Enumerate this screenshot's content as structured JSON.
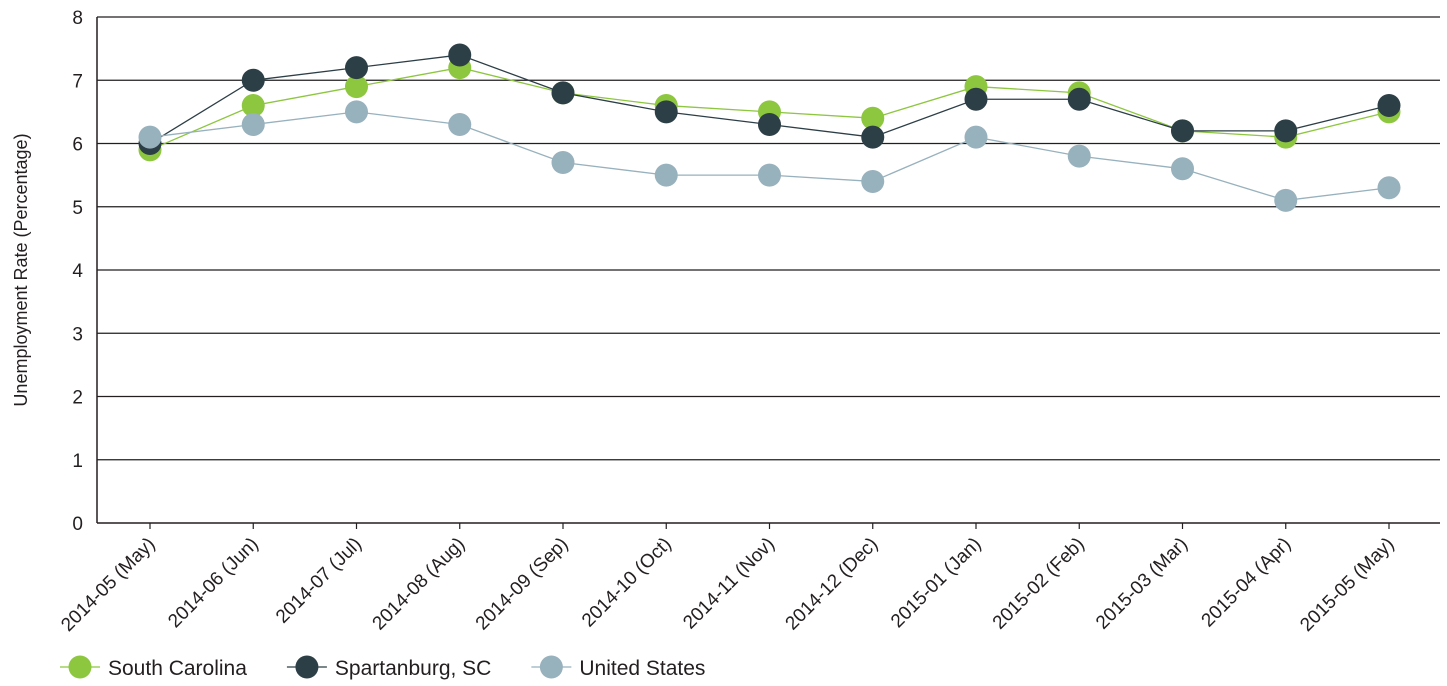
{
  "chart_data": {
    "type": "line",
    "title": "",
    "xlabel": "",
    "ylabel": "Unemployment Rate (Percentage)",
    "ylim": [
      0,
      8
    ],
    "yticks": [
      "0",
      "1",
      "2",
      "3",
      "4",
      "5",
      "6",
      "7",
      "8"
    ],
    "grid": true,
    "legend_position": "bottom-left",
    "categories": [
      "2014-05 (May)",
      "2014-06 (Jun)",
      "2014-07 (Jul)",
      "2014-08 (Aug)",
      "2014-09 (Sep)",
      "2014-10 (Oct)",
      "2014-11 (Nov)",
      "2014-12 (Dec)",
      "2015-01 (Jan)",
      "2015-02 (Feb)",
      "2015-03 (Mar)",
      "2015-04 (Apr)",
      "2015-05 (May)"
    ],
    "series": [
      {
        "name": "South Carolina",
        "color": "#8dc63f",
        "values": [
          5.9,
          6.6,
          6.9,
          7.2,
          6.8,
          6.6,
          6.5,
          6.4,
          6.9,
          6.8,
          6.2,
          6.1,
          6.5
        ]
      },
      {
        "name": "Spartanburg, SC",
        "color": "#2c3e46",
        "values": [
          6.0,
          7.0,
          7.2,
          7.4,
          6.8,
          6.5,
          6.3,
          6.1,
          6.7,
          6.7,
          6.2,
          6.2,
          6.6
        ]
      },
      {
        "name": "United States",
        "color": "#97b1bd",
        "values": [
          6.1,
          6.3,
          6.5,
          6.3,
          5.7,
          5.5,
          5.5,
          5.4,
          6.1,
          5.8,
          5.6,
          5.1,
          5.3
        ]
      }
    ]
  }
}
